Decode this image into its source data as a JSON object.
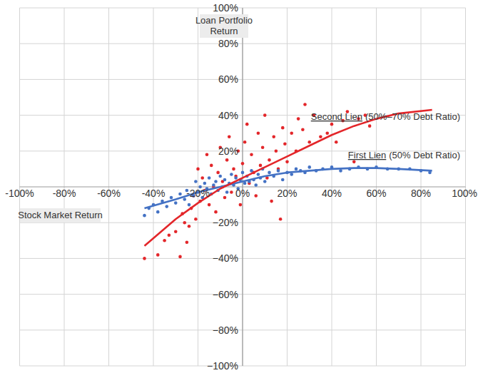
{
  "chart_data": {
    "type": "scatter",
    "x_label": "Stock Market Return",
    "y_label": "Loan Portfolio Return",
    "xlim": [
      -100,
      100
    ],
    "ylim": [
      -100,
      100
    ],
    "xticks": [
      {
        "value": -100,
        "label": "-100%"
      },
      {
        "value": -80,
        "label": "-80%"
      },
      {
        "value": -60,
        "label": "-60%"
      },
      {
        "value": -40,
        "label": "-40%"
      },
      {
        "value": -20,
        "label": "-20%"
      },
      {
        "value": 0,
        "label": "0%"
      },
      {
        "value": 20,
        "label": "20%"
      },
      {
        "value": 40,
        "label": "40%"
      },
      {
        "value": 60,
        "label": "60%"
      },
      {
        "value": 80,
        "label": "80%"
      },
      {
        "value": 100,
        "label": "100%"
      }
    ],
    "yticks": [
      {
        "value": 100,
        "label": "100%"
      },
      {
        "value": 80,
        "label": "80%"
      },
      {
        "value": 60,
        "label": "60%"
      },
      {
        "value": 40,
        "label": "40%"
      },
      {
        "value": 20,
        "label": "20%"
      },
      {
        "value": -20,
        "label": "−20%"
      },
      {
        "value": -40,
        "label": "−40%"
      },
      {
        "value": -60,
        "label": "−60%"
      },
      {
        "value": -80,
        "label": "−80%"
      },
      {
        "value": -100,
        "label": "−100%"
      }
    ],
    "grid": true,
    "series": [
      {
        "name": "Second Lien",
        "note": "(50%–70% Debt Ratio)",
        "color": "#e3262a",
        "marker": "circle",
        "x": [
          -44,
          -38,
          -35,
          -33,
          -30,
          -28,
          -27,
          -26,
          -25,
          -24,
          -23,
          -22,
          -21,
          -20,
          -19,
          -18,
          -17,
          -16,
          -15,
          -14,
          -13,
          -12,
          -11,
          -10,
          -9,
          -8,
          -7,
          -6,
          -5,
          -4,
          -3,
          -2,
          -1,
          0,
          1,
          2,
          3,
          4,
          5,
          6,
          7,
          8,
          9,
          10,
          11,
          12,
          13,
          14,
          15,
          16,
          17,
          18,
          19,
          20,
          22,
          24,
          25,
          27,
          28,
          30,
          32,
          35,
          38,
          40,
          42,
          45,
          47,
          50,
          52,
          55,
          57
        ],
        "values": [
          -40,
          -38,
          -30,
          -27,
          -25,
          -39,
          -15,
          -20,
          -31,
          -22,
          -12,
          -5,
          -18,
          10,
          -8,
          5,
          -2,
          18,
          -10,
          12,
          0,
          -14,
          8,
          22,
          3,
          -6,
          15,
          28,
          -3,
          10,
          6,
          20,
          -10,
          13,
          25,
          35,
          2,
          18,
          8,
          -5,
          30,
          12,
          22,
          40,
          5,
          15,
          -8,
          28,
          20,
          10,
          -18,
          33,
          24,
          14,
          30,
          20,
          38,
          32,
          46,
          25,
          40,
          28,
          30,
          35,
          25,
          37,
          42,
          14,
          38,
          40,
          34
        ],
        "trend": {
          "x": [
            -44,
            -30,
            -20,
            -10,
            0,
            10,
            20,
            30,
            40,
            50,
            60,
            70,
            85
          ],
          "values": [
            -33,
            -18,
            -9,
            -1,
            5,
            11,
            17,
            23,
            29,
            34,
            38,
            41,
            43
          ]
        }
      },
      {
        "name": "First Lien",
        "note": "(50% Debt Ratio)",
        "color": "#4472c4",
        "marker": "circle",
        "x": [
          -44,
          -42,
          -40,
          -38,
          -36,
          -34,
          -32,
          -30,
          -28,
          -26,
          -25,
          -24,
          -22,
          -21,
          -20,
          -19,
          -18,
          -17,
          -16,
          -15,
          -14,
          -13,
          -12,
          -11,
          -10,
          -9,
          -8,
          -7,
          -6,
          -5,
          -4,
          -3,
          -2,
          -1,
          0,
          1,
          2,
          3,
          4,
          5,
          6,
          7,
          8,
          9,
          10,
          12,
          14,
          16,
          18,
          20,
          22,
          24,
          26,
          28,
          30,
          33,
          36,
          40,
          44,
          48,
          52,
          56,
          60,
          65,
          70,
          75,
          80,
          84
        ],
        "values": [
          -16,
          -12,
          -10,
          -14,
          -8,
          -11,
          -6,
          -9,
          -4,
          -7,
          -2,
          -10,
          -5,
          3,
          -3,
          0,
          -6,
          2,
          -1,
          5,
          -4,
          1,
          3,
          -2,
          6,
          0,
          4,
          -3,
          2,
          7,
          1,
          5,
          -1,
          4,
          8,
          2,
          6,
          3,
          9,
          4,
          1,
          7,
          5,
          10,
          3,
          8,
          6,
          9,
          4,
          8,
          7,
          10,
          9,
          8,
          11,
          9,
          10,
          11,
          9,
          10,
          11,
          10,
          11,
          10,
          10,
          10,
          9,
          8
        ],
        "trend": {
          "x": [
            -44,
            -30,
            -20,
            -10,
            0,
            10,
            20,
            30,
            40,
            50,
            60,
            70,
            85
          ],
          "values": [
            -12,
            -7,
            -3,
            0,
            3,
            6,
            8,
            9,
            10,
            10.5,
            10.5,
            10,
            9
          ]
        }
      }
    ]
  }
}
